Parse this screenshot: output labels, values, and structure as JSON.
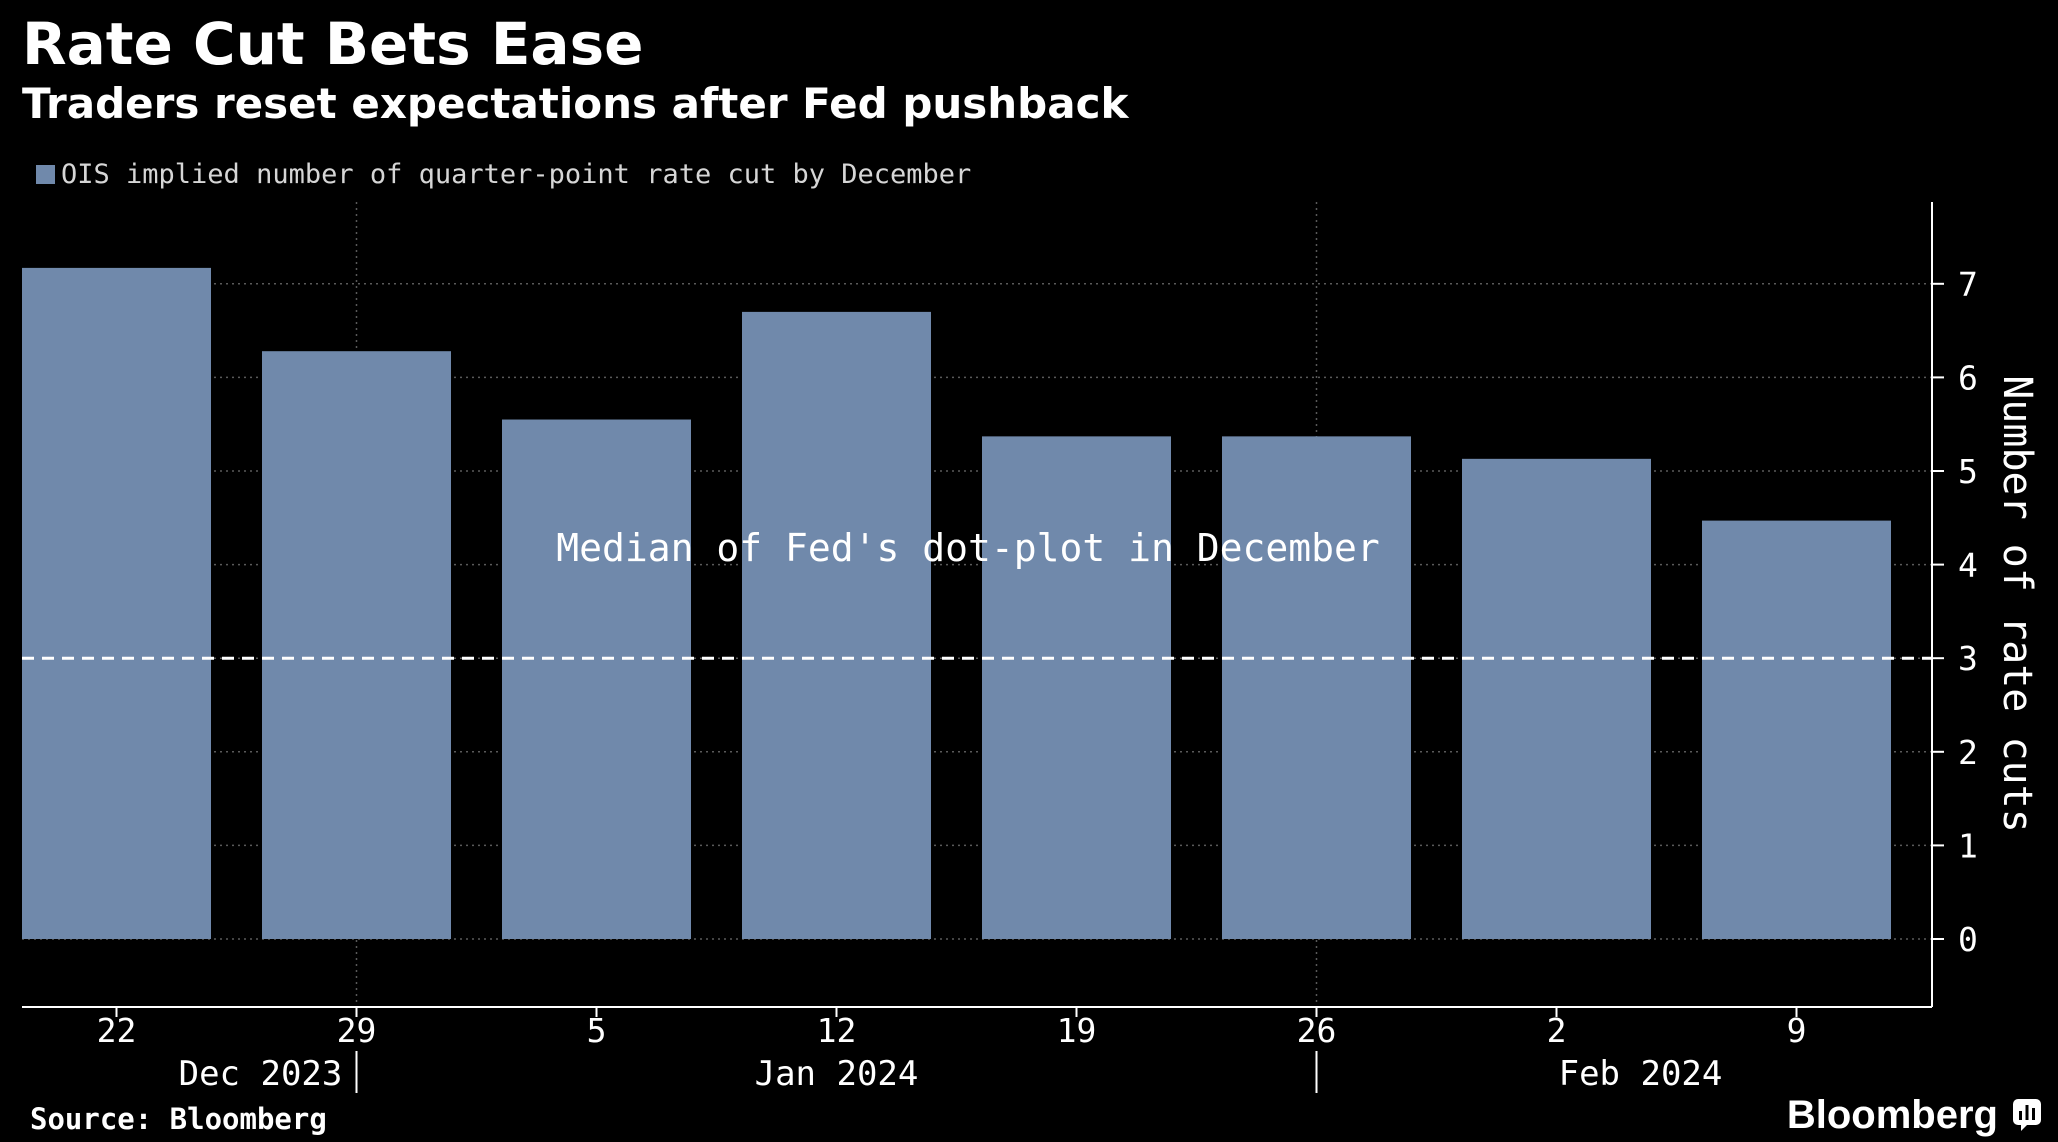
{
  "header": {
    "title": "Rate Cut Bets Ease",
    "subtitle": "Traders reset expectations after Fed pushback"
  },
  "footer": {
    "source": "Source: Bloomberg",
    "brand": "Bloomberg",
    "brand_icon": "bloomberg-terminal-icon"
  },
  "colors": {
    "background": "#000000",
    "bar": "#7089ab",
    "text": "#ffffff",
    "grid": "#5a5a5a",
    "reference_line": "#ffffff"
  },
  "chart_data": {
    "type": "bar",
    "title": "Rate Cut Bets Ease",
    "subtitle": "Traders reset expectations after Fed pushback",
    "categories": [
      "22",
      "29",
      "5",
      "12",
      "19",
      "26",
      "2",
      "9"
    ],
    "period_labels": [
      {
        "label": "Dec 2023",
        "center_after_index": 0.6
      },
      {
        "label": "Jan 2024",
        "center_after_index": 3.0
      },
      {
        "label": "Feb 2024",
        "center_after_index": 6.35
      }
    ],
    "period_dividers_between": [
      1,
      5
    ],
    "series": [
      {
        "name": "OIS implied number of quarter-point rate cut by December",
        "values": [
          7.17,
          6.28,
          5.55,
          6.7,
          5.37,
          5.37,
          5.13,
          4.47
        ]
      }
    ],
    "reference_line": {
      "value": 3,
      "label": "Median of Fed's dot-plot in December",
      "style": "dashed"
    },
    "ylabel": "Number of rate cuts",
    "xlabel": "",
    "y_axis_side": "right",
    "ylim": [
      -0.7,
      7.9
    ],
    "yticks": [
      0,
      1,
      2,
      3,
      4,
      5,
      6,
      7
    ],
    "grid": true,
    "legend": "top-left"
  }
}
